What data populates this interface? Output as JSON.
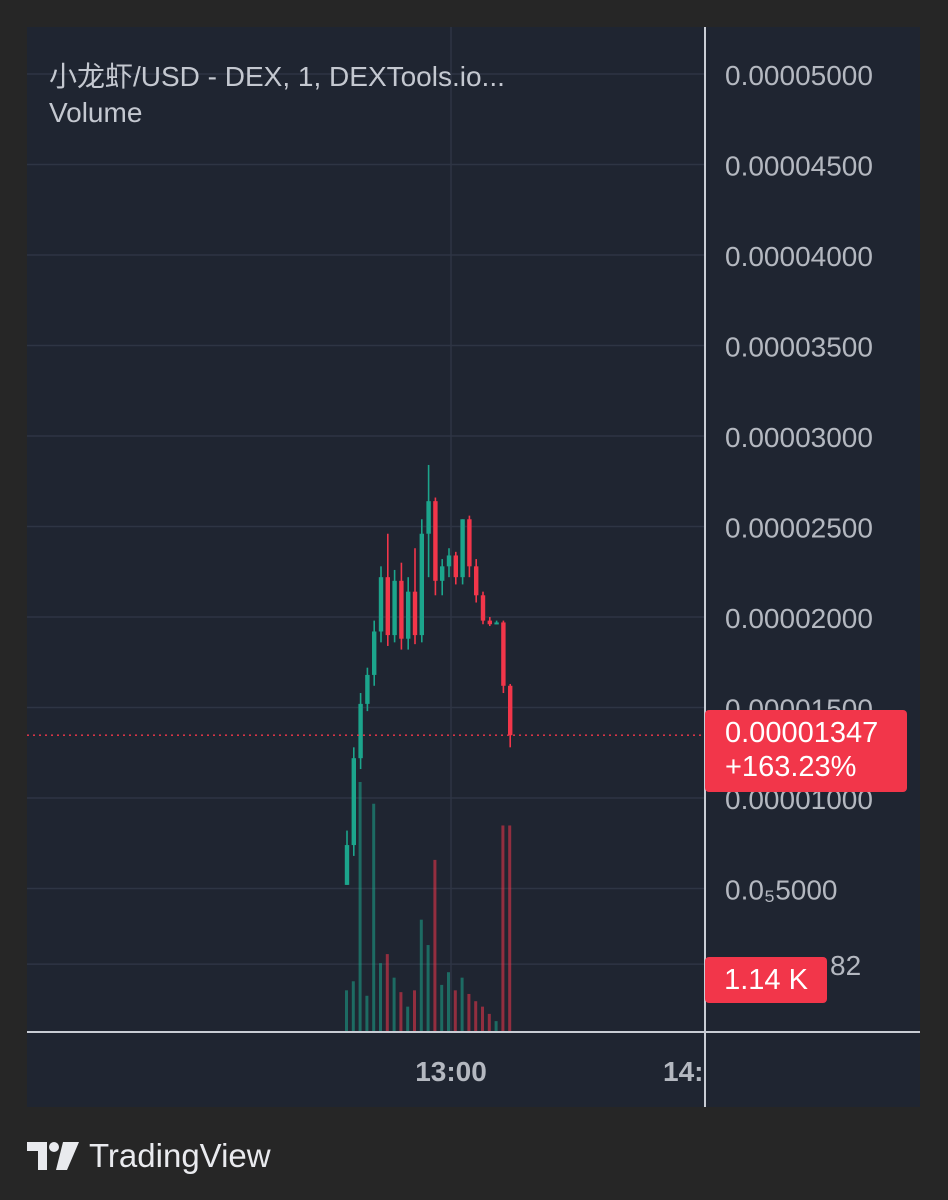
{
  "header": {
    "symbol_line": "小龙虾/USD - DEX, 1, DEXTools.io...",
    "volume_label": "Volume"
  },
  "price_tag": {
    "price": "0.00001347",
    "change": "+163.23%"
  },
  "volume_tag": {
    "value": "1.14 K"
  },
  "brand": {
    "name": "TradingView",
    "icon": "tradingview-logo-icon"
  },
  "colors": {
    "background": "#262626",
    "panel": "#1f2531",
    "grid": "#2e3544",
    "up": "#1ca58c",
    "down": "#f2364a",
    "axis_text": "#b4b8c0"
  },
  "chart_data": {
    "type": "candlestick",
    "title": "小龙虾/USD - DEX, 1, DEXTools.io...",
    "y_axis": {
      "ticks": [
        "0.00005000",
        "0.00004500",
        "0.00004000",
        "0.00003500",
        "0.00003000",
        "0.00002500",
        "0.00002000",
        "0.00001500",
        "0.00001000",
        "0.0₅5000"
      ],
      "tick_values": [
        5e-05,
        4.5e-05,
        4e-05,
        3.5e-05,
        3e-05,
        2.5e-05,
        2e-05,
        1.5e-05,
        1e-05,
        5e-06
      ],
      "hidden_partial_label": "82",
      "range": [
        5e-07,
        5.15e-05
      ]
    },
    "x_axis": {
      "ticks": [
        "13:00",
        "14:"
      ]
    },
    "last_price": 1.347e-05,
    "change_percent": "+163.23%",
    "last_volume": "1.14 K",
    "candles": [
      {
        "o": 5.2e-06,
        "h": 8.2e-06,
        "l": 5.2e-06,
        "c": 7.4e-06,
        "v": 230
      },
      {
        "o": 7.4e-06,
        "h": 1.28e-05,
        "l": 6.8e-06,
        "c": 1.22e-05,
        "v": 280
      },
      {
        "o": 1.22e-05,
        "h": 1.58e-05,
        "l": 1.16e-05,
        "c": 1.52e-05,
        "v": 1380
      },
      {
        "o": 1.52e-05,
        "h": 1.72e-05,
        "l": 1.48e-05,
        "c": 1.68e-05,
        "v": 200
      },
      {
        "o": 1.68e-05,
        "h": 1.98e-05,
        "l": 1.62e-05,
        "c": 1.92e-05,
        "v": 1260
      },
      {
        "o": 1.92e-05,
        "h": 2.28e-05,
        "l": 1.86e-05,
        "c": 2.22e-05,
        "v": 380
      },
      {
        "o": 2.22e-05,
        "h": 2.46e-05,
        "l": 1.84e-05,
        "c": 1.9e-05,
        "v": 430
      },
      {
        "o": 1.9e-05,
        "h": 2.26e-05,
        "l": 1.86e-05,
        "c": 2.2e-05,
        "v": 300
      },
      {
        "o": 2.2e-05,
        "h": 2.3e-05,
        "l": 1.82e-05,
        "c": 1.88e-05,
        "v": 220
      },
      {
        "o": 1.88e-05,
        "h": 2.22e-05,
        "l": 1.82e-05,
        "c": 2.14e-05,
        "v": 140
      },
      {
        "o": 2.14e-05,
        "h": 2.38e-05,
        "l": 1.85e-05,
        "c": 1.9e-05,
        "v": 230
      },
      {
        "o": 1.9e-05,
        "h": 2.54e-05,
        "l": 1.86e-05,
        "c": 2.46e-05,
        "v": 620
      },
      {
        "o": 2.46e-05,
        "h": 2.84e-05,
        "l": 2.22e-05,
        "c": 2.64e-05,
        "v": 480
      },
      {
        "o": 2.64e-05,
        "h": 2.66e-05,
        "l": 2.12e-05,
        "c": 2.2e-05,
        "v": 950
      },
      {
        "o": 2.2e-05,
        "h": 2.32e-05,
        "l": 2.12e-05,
        "c": 2.28e-05,
        "v": 260
      },
      {
        "o": 2.28e-05,
        "h": 2.38e-05,
        "l": 2.22e-05,
        "c": 2.34e-05,
        "v": 330
      },
      {
        "o": 2.34e-05,
        "h": 2.36e-05,
        "l": 2.18e-05,
        "c": 2.22e-05,
        "v": 230
      },
      {
        "o": 2.22e-05,
        "h": 2.54e-05,
        "l": 2.18e-05,
        "c": 2.54e-05,
        "v": 300
      },
      {
        "o": 2.54e-05,
        "h": 2.56e-05,
        "l": 2.22e-05,
        "c": 2.28e-05,
        "v": 210
      },
      {
        "o": 2.28e-05,
        "h": 2.32e-05,
        "l": 2.08e-05,
        "c": 2.12e-05,
        "v": 170
      },
      {
        "o": 2.12e-05,
        "h": 2.14e-05,
        "l": 1.96e-05,
        "c": 1.98e-05,
        "v": 140
      },
      {
        "o": 1.98e-05,
        "h": 2e-05,
        "l": 1.95e-05,
        "c": 1.96e-05,
        "v": 100
      },
      {
        "o": 1.96e-05,
        "h": 1.98e-05,
        "l": 1.96e-05,
        "c": 1.97e-05,
        "v": 60
      },
      {
        "o": 1.97e-05,
        "h": 1.98e-05,
        "l": 1.58e-05,
        "c": 1.62e-05,
        "v": 1140
      },
      {
        "o": 1.62e-05,
        "h": 1.63e-05,
        "l": 1.28e-05,
        "c": 1.347e-05,
        "v": 1140
      }
    ]
  }
}
